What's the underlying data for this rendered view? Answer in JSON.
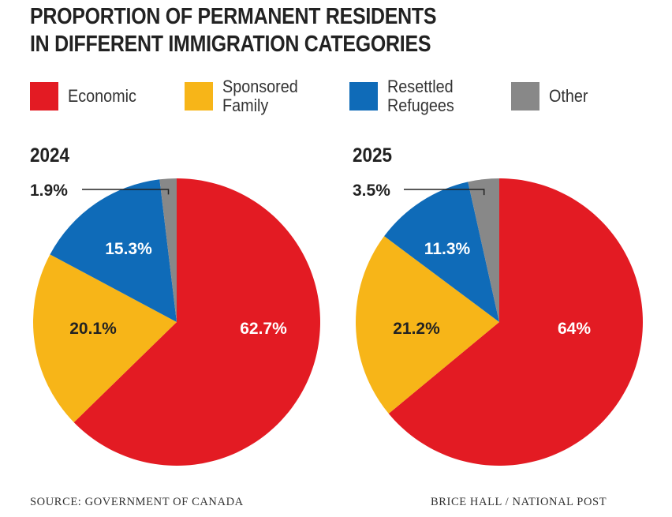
{
  "title": [
    "PROPORTION OF PERMANENT RESIDENTS",
    "IN DIFFERENT IMMIGRATION CATEGORIES"
  ],
  "legend": [
    {
      "label": "Economic",
      "color": "#e31b23"
    },
    {
      "label": "Sponsored\nFamily",
      "color": "#f7b518"
    },
    {
      "label": "Resettled\nRefugees",
      "color": "#0f6bb8"
    },
    {
      "label": "Other",
      "color": "#888888"
    }
  ],
  "chart_data": [
    {
      "type": "pie",
      "title": "2024",
      "slices": [
        {
          "category": "Economic",
          "value": 62.7,
          "label": "62.7%",
          "color": "#e31b23"
        },
        {
          "category": "Sponsored Family",
          "value": 20.1,
          "label": "20.1%",
          "color": "#f7b518"
        },
        {
          "category": "Resettled Refugees",
          "value": 15.3,
          "label": "15.3%",
          "color": "#0f6bb8"
        },
        {
          "category": "Other",
          "value": 1.9,
          "label": "1.9%",
          "color": "#888888"
        }
      ]
    },
    {
      "type": "pie",
      "title": "2025",
      "slices": [
        {
          "category": "Economic",
          "value": 64,
          "label": "64%",
          "color": "#e31b23"
        },
        {
          "category": "Sponsored Family",
          "value": 21.2,
          "label": "21.2%",
          "color": "#f7b518"
        },
        {
          "category": "Resettled Refugees",
          "value": 11.3,
          "label": "11.3%",
          "color": "#0f6bb8"
        },
        {
          "category": "Other",
          "value": 3.5,
          "label": "3.5%",
          "color": "#888888"
        }
      ]
    }
  ],
  "footer": {
    "source": "SOURCE: GOVERNMENT OF CANADA",
    "credit": "BRICE HALL  / NATIONAL POST"
  }
}
